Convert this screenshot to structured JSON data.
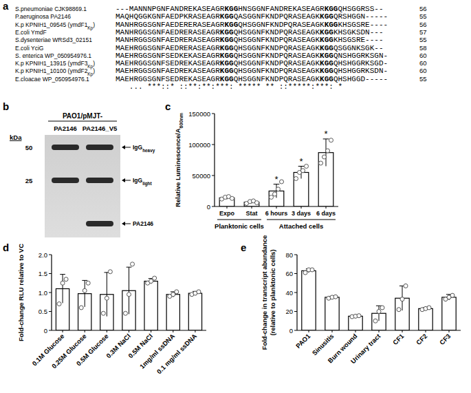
{
  "alignment": {
    "panel": "a",
    "rows": [
      {
        "name": "S.pneumoniae CJK98869.1",
        "sequence": "---MANNNPGNFANDREKASEAGRKGGHNSGGNFANDREKASEAGRKGGQHSGGRSS--",
        "length": 56
      },
      {
        "name": "P.aeruginosa PA2146",
        "sequence": "MAQHQGGKGNFAEDPKRASEAGRKGGQASGGNFKNDPQRASEAGKKGGQRSHGGN-----",
        "length": 55
      },
      {
        "name": "K.p KPNIH1_09545 (ymdF1Kp)",
        "subscript": "Kp",
        "sequence": "MANHRGGSGNFAEDERERASEAGRKGGQHSGGNFKNDPQRASEAGKKGGKHSGSRE----",
        "length": 56
      },
      {
        "name": "E.coli YmdF",
        "sequence": "MANHRGGSGNFAEDRERASEAGRKGGQHSGGNFKNDPQRASEAGKKGGKHSGKSDN---",
        "length": 57
      },
      {
        "name": "S.dysenteriae WRSd3_02151",
        "sequence": "MANHRGGSGNFAEDRERASEAGRKGGQHSGGNFKNDPQRASEAGKKGGKHSGSRE----",
        "length": 55
      },
      {
        "name": "E.coli YciG",
        "sequence": "MAEHRGGSGNFAEDRERASEAGRKGGQHSGGNFKNDPQRASEAGKKGGQSGGNKSGK--",
        "length": 58
      },
      {
        "name": "S. enterica WP_050954976.1",
        "sequence": "MAEHRGGSGNFSEDKEKASEAGRKGGQHSGGNFKNDPQRASEAGKKGGQNSHGGRKSGN-",
        "length": 60
      },
      {
        "name": "K.p KPNIH1_13915 (ymdF3Kp)",
        "subscript": "Kp",
        "sequence": "MAEHRGGSGNFSEDREKASEAGRKGGQHSGGNFKNDPQRASEAGKKGGQHSHGGRKSGD-",
        "length": 60
      },
      {
        "name": "K.p KPNIH1_10100 (ymdF2Kp)",
        "subscript": "Kp",
        "sequence": "MAEHRGGSGNFAEDREKASEAGRKGGQHSGGNFKNDPQRASEAGKKGGQHSHGGRKSDN-",
        "length": 60
      },
      {
        "name": "E.cloacae WP_050954976.1",
        "sequence": "MAEHRGGSGNFSEDREKASEAGRKGGQHSGGNFKNDPQRASEAGKKGGQHSHGGD-----",
        "length": 55
      }
    ],
    "consensus": "   ... ***::* ::**:**:***: ***** ** ::*****:***: *",
    "motif": "KGG"
  },
  "blot": {
    "panel": "b",
    "header": "PAO1/pMJT-",
    "lanes": [
      "PA2146",
      "PA2146_V5"
    ],
    "unit": "kDa",
    "markers": [
      50,
      25
    ],
    "bands": [
      {
        "label": "IgGheavy",
        "subscript": "heavy",
        "present": [
          true,
          true
        ]
      },
      {
        "label": "IgGlight",
        "subscript": "light",
        "present": [
          true,
          true
        ]
      },
      {
        "label": "PA2146",
        "present": [
          false,
          true
        ]
      }
    ]
  },
  "chart_data": [
    {
      "panel": "c",
      "type": "bar",
      "y_label": "Relative Luminescence/A600nm",
      "y_label_subscript": "600nm",
      "categories": [
        "Expo",
        "Stat",
        "6 hours",
        "3 days",
        "6 days"
      ],
      "groups": [
        {
          "label": "Planktonic cells",
          "count": 2
        },
        {
          "label": "Attached cells",
          "count": 3
        }
      ],
      "values": [
        14000,
        7000,
        25000,
        55000,
        87000
      ],
      "errors": [
        2500,
        2000,
        11000,
        10000,
        22000
      ],
      "points": [
        [
          12000,
          15000,
          16000,
          13000
        ],
        [
          5000,
          8000,
          9000,
          6000
        ],
        [
          15000,
          20000,
          28000,
          40000
        ],
        [
          45000,
          55000,
          58000,
          65000
        ],
        [
          70000,
          80000,
          90000,
          107000
        ]
      ],
      "significance": [
        null,
        null,
        "*",
        "*",
        "*"
      ],
      "color": "#ffffff",
      "ylim": [
        0,
        150000
      ],
      "yticks": [
        0,
        50000,
        100000,
        150000
      ],
      "grid": false
    },
    {
      "panel": "d",
      "type": "bar",
      "y_label": "Fold-change RLU relative to VC",
      "categories": [
        "0.1M Glucose",
        "0.25M Glucose",
        "0.5M Glucose",
        "0.3M NaCl",
        "0.5M NaCl",
        "1mg/ml ssDNA",
        "0.1 mg/ml ssDNA"
      ],
      "values": [
        1.1,
        0.97,
        0.95,
        1.05,
        1.3,
        0.95,
        0.98
      ],
      "errors": [
        0.38,
        0.35,
        0.58,
        0.62,
        0.07,
        0.07,
        0.05
      ],
      "points": [
        [
          0.7,
          1.25,
          1.35
        ],
        [
          0.6,
          1.05,
          1.25
        ],
        [
          0.45,
          0.85,
          1.55
        ],
        [
          0.45,
          0.95,
          1.75
        ],
        [
          1.25,
          1.3,
          1.38
        ],
        [
          0.9,
          0.95,
          1.02
        ],
        [
          0.95,
          0.98,
          1.02
        ]
      ],
      "color": "#ffffff",
      "ylim": [
        0,
        2
      ],
      "yticks": [
        0,
        0.5,
        {
          "value": 1,
          "label": "1.0"
        },
        1.5,
        {
          "value": 2,
          "label": "2.0"
        }
      ],
      "grid": false
    },
    {
      "panel": "e",
      "type": "bar",
      "y_label": [
        "Fold-change in transcript abundance",
        "(relative to planktonic cells)"
      ],
      "categories": [
        "PAO1",
        "Sinusitis",
        "Burn wound",
        "Urinary tract",
        "CF1",
        "CF2",
        "CF3"
      ],
      "values": [
        63,
        35,
        15,
        18,
        34,
        23,
        35
      ],
      "errors": [
        2,
        1,
        0.5,
        8,
        13,
        1,
        3
      ],
      "points": [
        [
          61,
          64,
          64
        ],
        [
          34,
          35,
          35.5
        ],
        [
          14.5,
          15,
          15.5
        ],
        [
          10,
          20,
          24
        ],
        [
          22,
          33,
          47
        ],
        [
          22,
          23,
          24
        ],
        [
          33,
          35,
          37
        ]
      ],
      "color": "#ffffff",
      "ylim": [
        0,
        80
      ],
      "yticks": [
        0,
        20,
        40,
        60,
        80
      ],
      "grid": false
    }
  ]
}
